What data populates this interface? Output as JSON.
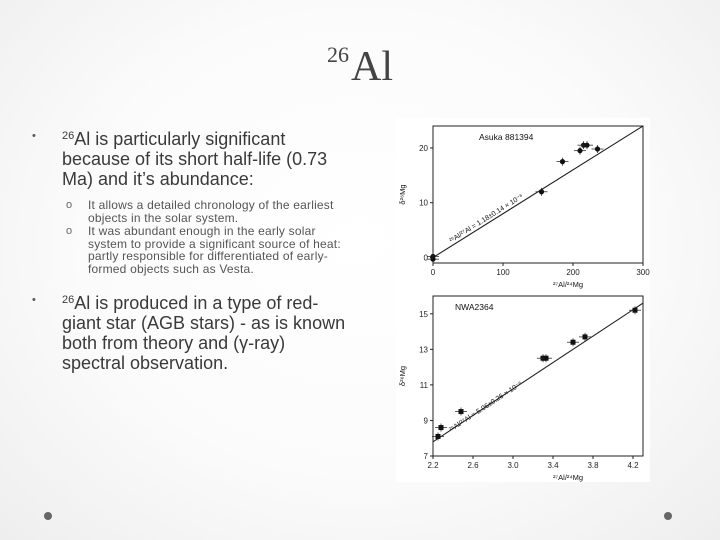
{
  "slide": {
    "title_sup": "26",
    "title_main": "Al",
    "bullets": [
      {
        "sup": "26",
        "text": "Al is particularly significant because of its short half-life (0.73 Ma) and it’s abundance:"
      },
      {
        "sup": "26",
        "text": "Al is produced in a type of red-giant star (AGB stars) - as is known both from theory and (γ-ray) spectral observation."
      }
    ],
    "subbullets": [
      "It allows a detailed chronology of the earliest objects in the solar system.",
      "It was abundant enough in the early solar system to provide a significant source of heat: partly responsible for differentiated of early-formed objects such as Vesta."
    ],
    "bullet_marker": "•",
    "sub_marker": "o"
  },
  "chart_data": [
    {
      "type": "scatter",
      "title": "Asuka 881394",
      "xlabel": "²⁷Al/²⁴Mg",
      "ylabel": "δ²⁶Mg",
      "xlim": [
        0,
        300
      ],
      "ylim": [
        -1,
        24
      ],
      "xticks": [
        "0",
        "100",
        "200",
        "300"
      ],
      "yticks": [
        "0",
        "10",
        "20"
      ],
      "fit_label": "²⁶Al/²⁷Al = 1.18±0.14 × 10⁻⁶",
      "fit_line": [
        [
          0,
          0
        ],
        [
          300,
          24
        ]
      ],
      "points": [
        [
          0,
          0.2
        ],
        [
          0,
          -0.3
        ],
        [
          155,
          12
        ],
        [
          185,
          17.5
        ],
        [
          210,
          19.5
        ],
        [
          215,
          20.5
        ],
        [
          220,
          20.5
        ],
        [
          235,
          19.8
        ]
      ]
    },
    {
      "type": "scatter",
      "title": "NWA2364",
      "xlabel": "²⁷Al/²⁴Mg",
      "ylabel": "δ²⁶Mg",
      "xlim": [
        2.2,
        4.3
      ],
      "ylim": [
        7,
        16
      ],
      "xticks": [
        "2.2",
        "2.6",
        "3.0",
        "3.4",
        "3.8",
        "4.2"
      ],
      "yticks": [
        "7",
        "9",
        "11",
        "13",
        "15"
      ],
      "fit_label": "²⁶Al/²⁷Al = 5.06±0.26 × 10⁻⁶",
      "fit_line": [
        [
          2.2,
          7.8
        ],
        [
          4.3,
          15.6
        ]
      ],
      "points": [
        [
          2.25,
          8.1
        ],
        [
          2.28,
          8.6
        ],
        [
          2.48,
          9.5
        ],
        [
          3.3,
          12.5
        ],
        [
          3.33,
          12.5
        ],
        [
          3.6,
          13.4
        ],
        [
          3.72,
          13.7
        ],
        [
          4.22,
          15.2
        ]
      ]
    }
  ]
}
